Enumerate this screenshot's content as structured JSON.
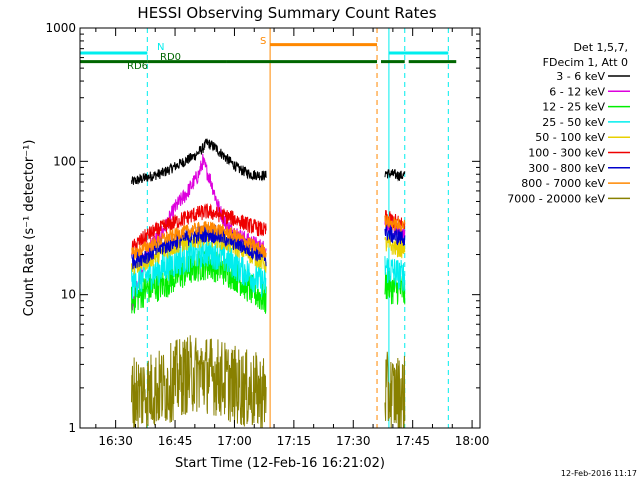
{
  "chart_data": {
    "type": "line",
    "title": "HESSI Observing Summary Count Rates",
    "xlabel": "Start Time (12-Feb-16 16:21:02)",
    "ylabel": "Count Rate (s⁻¹ detector⁻¹)",
    "x_axis": {
      "type": "time",
      "min": "16:21",
      "max": "18:02",
      "ticks": [
        "16:30",
        "16:45",
        "17:00",
        "17:15",
        "17:30",
        "17:45",
        "18:00"
      ]
    },
    "y_axis": {
      "scale": "log",
      "min": 1,
      "max": 1000,
      "ticks": [
        "1",
        "10",
        "100",
        "1000"
      ]
    },
    "legend": {
      "placement": "right",
      "header": [
        "Det 1,5,7,",
        "FDecim 1, Att 0"
      ],
      "entries": [
        {
          "label": "3 - 6 keV",
          "color": "#000000"
        },
        {
          "label": "6 - 12 keV",
          "color": "#dd00dd"
        },
        {
          "label": "12 - 25 keV",
          "color": "#00ee00"
        },
        {
          "label": "25 - 50 keV",
          "color": "#00eeee"
        },
        {
          "label": "50 - 100 keV",
          "color": "#e8d000"
        },
        {
          "label": "100 - 300 keV",
          "color": "#ee0000"
        },
        {
          "label": "300 - 800 keV",
          "color": "#0000cc"
        },
        {
          "label": "800 - 7000 keV",
          "color": "#ff8800"
        },
        {
          "label": "7000 - 20000 keV",
          "color": "#888000"
        }
      ]
    },
    "flags": [
      {
        "label": "N",
        "color": "#00eeee",
        "level": 650,
        "segments": [
          [
            "16:21",
            "16:38"
          ],
          [
            "17:39",
            "17:54"
          ]
        ]
      },
      {
        "label": "S",
        "color": "#ff8800",
        "level": 750,
        "segments": [
          [
            "17:09",
            "17:36"
          ]
        ]
      },
      {
        "label": "RD0",
        "color": "#006600",
        "level": 560,
        "segments": [
          [
            "16:38",
            "16:58"
          ],
          [
            "16:58",
            "17:36"
          ],
          [
            "17:37",
            "17:43"
          ],
          [
            "17:44",
            "17:56"
          ]
        ]
      },
      {
        "label": "RD6",
        "color": "#006600",
        "level": 560,
        "segments": [
          [
            "16:21",
            "16:38"
          ]
        ]
      }
    ],
    "vlines": [
      {
        "t": "16:21",
        "color": "#00eeee",
        "style": "solid"
      },
      {
        "t": "16:38",
        "color": "#00eeee",
        "style": "dashed"
      },
      {
        "t": "17:09",
        "color": "#ff8800",
        "style": "solid"
      },
      {
        "t": "17:36",
        "color": "#ff8800",
        "style": "dashed"
      },
      {
        "t": "17:39",
        "color": "#00eeee",
        "style": "solid"
      },
      {
        "t": "17:43",
        "color": "#00eeee",
        "style": "dashed"
      },
      {
        "t": "17:54",
        "color": "#00eeee",
        "style": "dashed"
      }
    ],
    "series": [
      {
        "name": "3 - 6 keV",
        "color": "#000000",
        "noise": 0.04,
        "segments": [
          {
            "x": [
              "16:34",
              "16:38",
              "16:42",
              "16:46",
              "16:50",
              "16:52",
              "16:53",
              "16:55",
              "16:58",
              "17:01",
              "17:04",
              "17:08"
            ],
            "y": [
              70,
              76,
              82,
              95,
              110,
              125,
              138,
              128,
              105,
              88,
              80,
              78
            ]
          },
          {
            "x": [
              "17:38",
              "17:40",
              "17:42",
              "17:43"
            ],
            "y": [
              82,
              80,
              78,
              78
            ]
          }
        ]
      },
      {
        "name": "6 - 12 keV",
        "color": "#dd00dd",
        "noise": 0.06,
        "segments": [
          {
            "x": [
              "16:34",
              "16:38",
              "16:42",
              "16:45",
              "16:48",
              "16:51",
              "16:52",
              "16:54",
              "16:56",
              "16:58",
              "17:01",
              "17:04",
              "17:08"
            ],
            "y": [
              8,
              22,
              30,
              45,
              58,
              80,
              100,
              72,
              45,
              33,
              28,
              25,
              22
            ]
          },
          {
            "x": [
              "17:38",
              "17:40",
              "17:42",
              "17:43"
            ],
            "y": [
              35,
              32,
              30,
              28
            ]
          }
        ]
      },
      {
        "name": "12 - 25 keV",
        "color": "#00ee00",
        "noise": 0.12,
        "segments": [
          {
            "x": [
              "16:34",
              "16:38",
              "16:42",
              "16:46",
              "16:50",
              "16:53",
              "16:56",
              "17:00",
              "17:04",
              "17:08"
            ],
            "y": [
              9,
              11,
              12,
              14,
              16,
              17,
              16,
              14,
              11,
              9
            ]
          },
          {
            "x": [
              "17:38",
              "17:40",
              "17:42",
              "17:43"
            ],
            "y": [
              12,
              11,
              11,
              10
            ]
          }
        ]
      },
      {
        "name": "25 - 50 keV",
        "color": "#00eeee",
        "noise": 0.12,
        "segments": [
          {
            "x": [
              "16:34",
              "16:38",
              "16:42",
              "16:46",
              "16:50",
              "16:53",
              "16:56",
              "17:00",
              "17:04",
              "17:08"
            ],
            "y": [
              12,
              14,
              16,
              18,
              20,
              21,
              20,
              17,
              14,
              12
            ]
          },
          {
            "x": [
              "17:38",
              "17:40",
              "17:42",
              "17:43"
            ],
            "y": [
              16,
              15,
              14,
              14
            ]
          }
        ]
      },
      {
        "name": "50 - 100 keV",
        "color": "#e8d000",
        "noise": 0.07,
        "segments": [
          {
            "x": [
              "16:34",
              "16:38",
              "16:42",
              "16:46",
              "16:50",
              "16:53",
              "16:56",
              "17:00",
              "17:04",
              "17:08"
            ],
            "y": [
              16,
              18,
              21,
              24,
              26,
              27,
              26,
              23,
              20,
              17
            ]
          },
          {
            "x": [
              "17:38",
              "17:40",
              "17:42",
              "17:43"
            ],
            "y": [
              24,
              23,
              22,
              22
            ]
          }
        ]
      },
      {
        "name": "100 - 300 keV",
        "color": "#ee0000",
        "noise": 0.06,
        "segments": [
          {
            "x": [
              "16:34",
              "16:38",
              "16:42",
              "16:46",
              "16:50",
              "16:53",
              "16:56",
              "17:00",
              "17:04",
              "17:08"
            ],
            "y": [
              22,
              28,
              32,
              36,
              40,
              42,
              40,
              37,
              33,
              30
            ]
          },
          {
            "x": [
              "17:38",
              "17:40",
              "17:42",
              "17:43"
            ],
            "y": [
              38,
              36,
              34,
              34
            ]
          }
        ]
      },
      {
        "name": "300 - 800 keV",
        "color": "#0000cc",
        "noise": 0.07,
        "segments": [
          {
            "x": [
              "16:34",
              "16:38",
              "16:42",
              "16:46",
              "16:50",
              "16:53",
              "16:56",
              "17:00",
              "17:04",
              "17:08"
            ],
            "y": [
              18,
              20,
              23,
              26,
              28,
              29,
              28,
              25,
              22,
              19
            ]
          },
          {
            "x": [
              "17:38",
              "17:40",
              "17:42",
              "17:43"
            ],
            "y": [
              30,
              28,
              27,
              27
            ]
          }
        ]
      },
      {
        "name": "800 - 7000 keV",
        "color": "#ff8800",
        "noise": 0.05,
        "segments": [
          {
            "x": [
              "16:34",
              "16:38",
              "16:42",
              "16:46",
              "16:50",
              "16:53",
              "16:56",
              "17:00",
              "17:04",
              "17:08"
            ],
            "y": [
              20,
              23,
              26,
              29,
              31,
              32,
              31,
              28,
              24,
              21
            ]
          },
          {
            "x": [
              "17:38",
              "17:40",
              "17:42",
              "17:43"
            ],
            "y": [
              36,
              34,
              33,
              33
            ]
          }
        ]
      },
      {
        "name": "7000 - 20000 keV",
        "color": "#888000",
        "noise": 0.3,
        "segments": [
          {
            "x": [
              "16:34",
              "16:38",
              "16:42",
              "16:45",
              "16:48",
              "16:52",
              "16:56",
              "17:00",
              "17:04",
              "17:08"
            ],
            "y": [
              1.8,
              1.9,
              2.0,
              2.3,
              2.5,
              2.6,
              2.4,
              2.1,
              1.9,
              1.8
            ]
          },
          {
            "x": [
              "17:38",
              "17:40",
              "17:42",
              "17:43"
            ],
            "y": [
              1.9,
              1.8,
              1.8,
              1.8
            ]
          }
        ]
      }
    ]
  },
  "footer_date": "12-Feb-2016 11:17"
}
